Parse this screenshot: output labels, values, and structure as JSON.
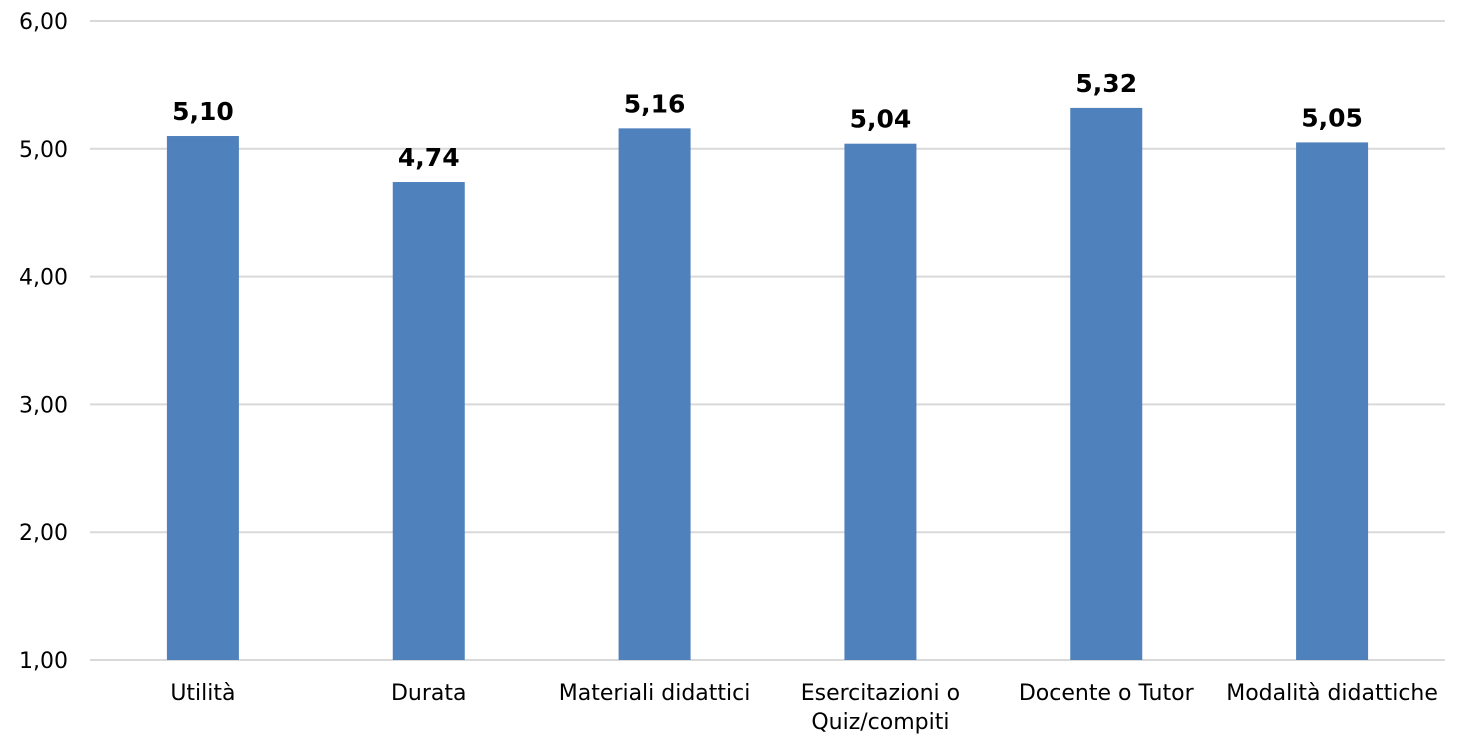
{
  "chart_data": {
    "type": "bar",
    "categories": [
      "Utilità",
      "Durata",
      "Materiali didattici",
      "Esercitazioni o Quiz/compiti",
      "Docente o Tutor",
      "Modalità didattiche"
    ],
    "category_lines": [
      [
        "Utilità"
      ],
      [
        "Durata"
      ],
      [
        "Materiali didattici"
      ],
      [
        "Esercitazioni o",
        "Quiz/compiti"
      ],
      [
        "Docente o Tutor"
      ],
      [
        "Modalità didattiche"
      ]
    ],
    "values": [
      5.1,
      4.74,
      5.16,
      5.04,
      5.32,
      5.05
    ],
    "data_labels": [
      "5,10",
      "4,74",
      "5,16",
      "5,04",
      "5,32",
      "5,05"
    ],
    "title": "",
    "xlabel": "",
    "ylabel": "",
    "ylim": [
      1,
      6
    ],
    "yticks": [
      1,
      2,
      3,
      4,
      5,
      6
    ],
    "ytick_labels": [
      "1,00",
      "2,00",
      "3,00",
      "4,00",
      "5,00",
      "6,00"
    ],
    "grid": true,
    "legend": "none",
    "colors": {
      "bar": "#4f81bd",
      "gridline": "#d9d9d9",
      "text": "#000000"
    }
  }
}
